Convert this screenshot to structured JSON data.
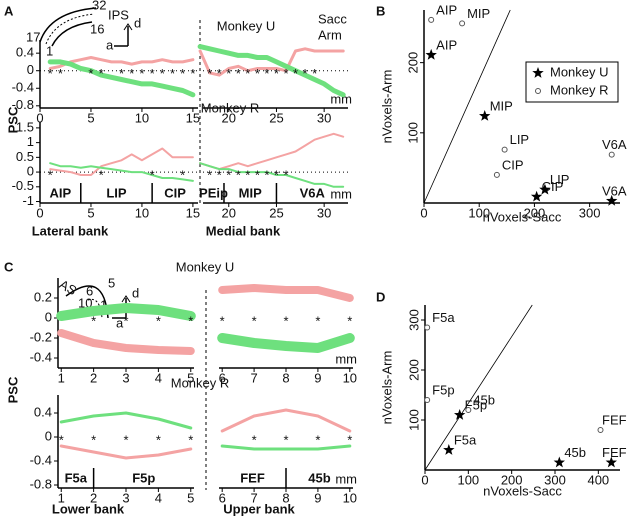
{
  "chart_data": [
    {
      "type": "line",
      "panel_label": "A",
      "title": "Monkey U",
      "y_label": "PSC",
      "inset_labels": [
        "32",
        "IPS",
        "17",
        "16",
        "1",
        "d",
        "a"
      ],
      "xlim": [
        0,
        15.5
      ],
      "xticks": [
        0,
        5,
        10,
        15
      ],
      "ylim": [
        -0.85,
        0.7
      ],
      "yticks": [
        -0.8,
        -0.4,
        0,
        0.4
      ],
      "zero_line": true,
      "x": [
        1,
        2,
        3,
        4,
        5,
        6,
        7,
        8,
        9,
        10,
        11,
        12,
        13,
        14,
        15
      ],
      "series": [
        {
          "name": "Sacc",
          "color": "#f4a3a3",
          "values": [
            0.05,
            0.1,
            0.2,
            0.25,
            0.3,
            0.25,
            0.2,
            0.2,
            0.15,
            0.2,
            0.2,
            0.25,
            0.2,
            0.2,
            0.25
          ]
        },
        {
          "name": "Arm",
          "color": "#6ee07e",
          "values": [
            0.2,
            0.2,
            0.15,
            0.05,
            0.0,
            -0.1,
            -0.15,
            -0.2,
            -0.25,
            -0.3,
            -0.3,
            -0.35,
            -0.4,
            -0.45,
            -0.55
          ]
        }
      ],
      "stars": {
        "label": "*",
        "x": [
          1,
          2,
          5,
          6,
          8,
          9,
          10,
          11,
          12,
          13,
          14,
          15
        ]
      }
    },
    {
      "type": "line",
      "xlim": [
        17.3,
        32.5
      ],
      "xticks": [
        20,
        25,
        30
      ],
      "x_unit": "mm",
      "ylim": [
        -0.85,
        0.7
      ],
      "zero_line": true,
      "x": [
        17,
        18,
        19,
        20,
        21,
        22,
        23,
        24,
        25,
        26,
        27,
        28,
        29,
        30,
        31,
        32
      ],
      "series": [
        {
          "color": "#f4a3a3",
          "values": [
            0.45,
            -0.05,
            -0.1,
            0.05,
            0.1,
            0.0,
            0.05,
            0.05,
            0.05,
            0.0,
            0.45,
            0.5,
            0.45,
            0.45,
            0.45,
            0.45
          ]
        },
        {
          "color": "#6ee07e",
          "values": [
            0.55,
            0.5,
            0.45,
            0.4,
            0.35,
            0.35,
            0.3,
            0.3,
            0.2,
            0.1,
            0.0,
            -0.1,
            -0.2,
            -0.3,
            -0.45,
            -0.55
          ]
        }
      ],
      "stars": {
        "label": "*",
        "x": [
          18,
          19,
          20,
          21,
          22,
          23,
          24,
          25,
          26,
          27,
          28,
          29
        ]
      }
    },
    {
      "type": "line",
      "title": "Monkey R",
      "xlim": [
        0,
        15.5
      ],
      "xticks": [
        0,
        5,
        10,
        15
      ],
      "ylim": [
        -1.05,
        1.7
      ],
      "yticks": [
        -1,
        -0.5,
        0,
        0.5,
        1,
        1.5
      ],
      "zero_line": true,
      "x": [
        1,
        2,
        3,
        4,
        5,
        6,
        7,
        8,
        9,
        10,
        11,
        12,
        13,
        14,
        15
      ],
      "series": [
        {
          "color": "#f4a3a3",
          "values": [
            0.1,
            0.05,
            0.0,
            -0.1,
            -0.1,
            0.2,
            0.3,
            0.4,
            0.6,
            0.4,
            0.6,
            0.8,
            0.5,
            0.5,
            0.5
          ]
        },
        {
          "color": "#6ee07e",
          "values": [
            0.3,
            0.2,
            0.2,
            0.15,
            0.2,
            0.15,
            0.1,
            0.05,
            0.0,
            0.0,
            -0.1,
            -0.2,
            -0.2,
            -0.25,
            -0.3
          ]
        }
      ],
      "stars": {
        "label": "*",
        "x": [
          1,
          6,
          11,
          14
        ]
      },
      "regions": [
        {
          "label": "AIP",
          "range": [
            0,
            4
          ]
        },
        {
          "label": "LIP",
          "range": [
            4,
            11
          ]
        },
        {
          "label": "CIP",
          "range": [
            11,
            15.5
          ]
        }
      ],
      "bank_label": "Lateral bank"
    },
    {
      "type": "line",
      "xlim": [
        17.3,
        32.5
      ],
      "xticks": [
        20,
        25,
        30
      ],
      "x_unit": "mm",
      "ylim": [
        -1.05,
        1.7
      ],
      "zero_line": true,
      "x": [
        17,
        18,
        19,
        20,
        21,
        22,
        23,
        24,
        25,
        26,
        27,
        28,
        29,
        30,
        31,
        32
      ],
      "series": [
        {
          "color": "#f4a3a3",
          "values": [
            0.3,
            0.2,
            0.1,
            0.2,
            0.3,
            0.2,
            0.3,
            0.4,
            0.5,
            0.6,
            0.7,
            0.9,
            1.1,
            1.2,
            1.3,
            1.2
          ]
        },
        {
          "color": "#6ee07e",
          "values": [
            0.3,
            0.2,
            0.1,
            0.1,
            0.0,
            0.0,
            0.0,
            0.0,
            -0.1,
            -0.1,
            -0.2,
            -0.3,
            -0.4,
            -0.4,
            -0.5,
            -0.5
          ]
        }
      ],
      "stars": {
        "label": "*",
        "x": [
          18,
          19,
          20,
          21,
          22,
          23,
          24,
          25,
          26
        ]
      },
      "regions": [
        {
          "label": "PEip",
          "range": [
            17.3,
            19.5
          ]
        },
        {
          "label": "MIP",
          "range": [
            19.5,
            25
          ]
        },
        {
          "label": "V6A",
          "range": [
            25,
            32.5
          ]
        }
      ],
      "bank_label": "Medial bank"
    },
    {
      "type": "scatter",
      "panel_label": "B",
      "x_label": "nVoxels-Sacc",
      "y_label": "nVoxels-Arm",
      "xlim": [
        0,
        355
      ],
      "xticks": [
        0,
        100,
        200,
        300
      ],
      "ylim": [
        0,
        275
      ],
      "yticks": [
        100,
        200
      ],
      "diagonal": true,
      "series": [
        {
          "name": "Monkey U",
          "marker": "star",
          "labels": [
            "AIP",
            "MIP",
            "CIP",
            "LIP",
            "V6A"
          ],
          "x": [
            13,
            110,
            204,
            219,
            340
          ],
          "values": [
            211,
            124,
            9,
            19,
            3
          ]
        },
        {
          "name": "Monkey R",
          "marker": "circle",
          "labels": [
            "AIP",
            "MIP",
            "LIP",
            "CIP",
            "V6A"
          ],
          "x": [
            13,
            69,
            146,
            132,
            340
          ],
          "values": [
            261,
            256,
            76,
            40,
            69
          ]
        }
      ]
    },
    {
      "type": "line",
      "panel_label": "C",
      "title": "Monkey U",
      "y_label": "PSC",
      "inset_labels": [
        "AS",
        "6",
        "5",
        "10",
        "1",
        "d",
        "a"
      ],
      "xlim": [
        0.9,
        5.1
      ],
      "xticks": [
        1,
        2,
        3,
        4,
        5
      ],
      "ylim": [
        -0.5,
        0.4
      ],
      "yticks": [
        -0.4,
        -0.2,
        0,
        0.2
      ],
      "x": [
        1,
        2,
        3,
        4,
        5
      ],
      "series": [
        {
          "color": "#f4a3a3",
          "values": [
            -0.15,
            -0.25,
            -0.3,
            -0.32,
            -0.33
          ]
        },
        {
          "color": "#6ee07e",
          "values": [
            0.02,
            0.07,
            0.1,
            0.08,
            0.02
          ]
        }
      ],
      "stars": {
        "label": "*",
        "x": [
          2,
          3,
          4,
          5
        ]
      }
    },
    {
      "type": "line",
      "xlim": [
        5.9,
        10.1
      ],
      "xticks": [
        6,
        7,
        8,
        9,
        10
      ],
      "x_unit": "mm",
      "ylim": [
        -0.5,
        0.4
      ],
      "x": [
        6,
        7,
        8,
        9,
        10
      ],
      "series": [
        {
          "color": "#f4a3a3",
          "values": [
            0.28,
            0.3,
            0.28,
            0.28,
            0.2
          ]
        },
        {
          "color": "#6ee07e",
          "values": [
            -0.2,
            -0.25,
            -0.28,
            -0.3,
            -0.2
          ]
        }
      ],
      "stars": {
        "label": "*",
        "x": [
          6,
          7,
          8,
          9,
          10
        ]
      }
    },
    {
      "type": "line",
      "title": "Monkey R",
      "xlim": [
        0.9,
        5.1
      ],
      "xticks": [
        1,
        2,
        3,
        4,
        5
      ],
      "ylim": [
        -0.85,
        0.7
      ],
      "yticks": [
        -0.8,
        -0.4,
        0,
        0.4
      ],
      "x": [
        1,
        2,
        3,
        4,
        5
      ],
      "series": [
        {
          "color": "#f4a3a3",
          "values": [
            -0.15,
            -0.25,
            -0.35,
            -0.3,
            -0.2
          ]
        },
        {
          "color": "#6ee07e",
          "values": [
            0.25,
            0.35,
            0.4,
            0.3,
            0.15
          ]
        }
      ],
      "stars": {
        "label": "*",
        "x": [
          1,
          2,
          3,
          4,
          5
        ]
      },
      "regions": [
        {
          "label": "F5a",
          "range": [
            0.9,
            2
          ]
        },
        {
          "label": "F5p",
          "range": [
            2,
            5.1
          ]
        }
      ],
      "bank_label": "Lower bank"
    },
    {
      "type": "line",
      "xlim": [
        5.9,
        10.1
      ],
      "xticks": [
        6,
        7,
        8,
        9,
        10
      ],
      "x_unit": "mm",
      "ylim": [
        -0.85,
        0.7
      ],
      "x": [
        6,
        7,
        8,
        9,
        10
      ],
      "series": [
        {
          "color": "#f4a3a3",
          "values": [
            0.1,
            0.35,
            0.45,
            0.35,
            0.1
          ]
        },
        {
          "color": "#6ee07e",
          "values": [
            -0.15,
            -0.2,
            -0.2,
            -0.2,
            -0.15
          ]
        }
      ],
      "stars": {
        "label": "*",
        "x": [
          7,
          8,
          9,
          10
        ]
      },
      "regions": [
        {
          "label": "FEF",
          "range": [
            5.9,
            8
          ]
        },
        {
          "label": "45b",
          "range": [
            8,
            10.1
          ]
        }
      ],
      "bank_label": "Upper bank"
    },
    {
      "type": "scatter",
      "panel_label": "D",
      "x_label": "nVoxels-Sacc",
      "y_label": "nVoxels-Arm",
      "xlim": [
        0,
        450
      ],
      "xticks": [
        0,
        100,
        200,
        300,
        400
      ],
      "ylim": [
        0,
        330
      ],
      "yticks": [
        100,
        200,
        300
      ],
      "diagonal": true,
      "series": [
        {
          "name": "Monkey U",
          "marker": "star",
          "labels": [
            "F5a",
            "F5p",
            "45b",
            "FEF"
          ],
          "x": [
            55,
            80,
            310,
            430
          ],
          "values": [
            40,
            110,
            15,
            15
          ]
        },
        {
          "name": "Monkey R",
          "marker": "circle",
          "labels": [
            "F5a",
            "F5p",
            "45b",
            "FEF"
          ],
          "x": [
            5,
            5,
            100,
            405
          ],
          "values": [
            285,
            140,
            120,
            80
          ]
        }
      ]
    }
  ]
}
